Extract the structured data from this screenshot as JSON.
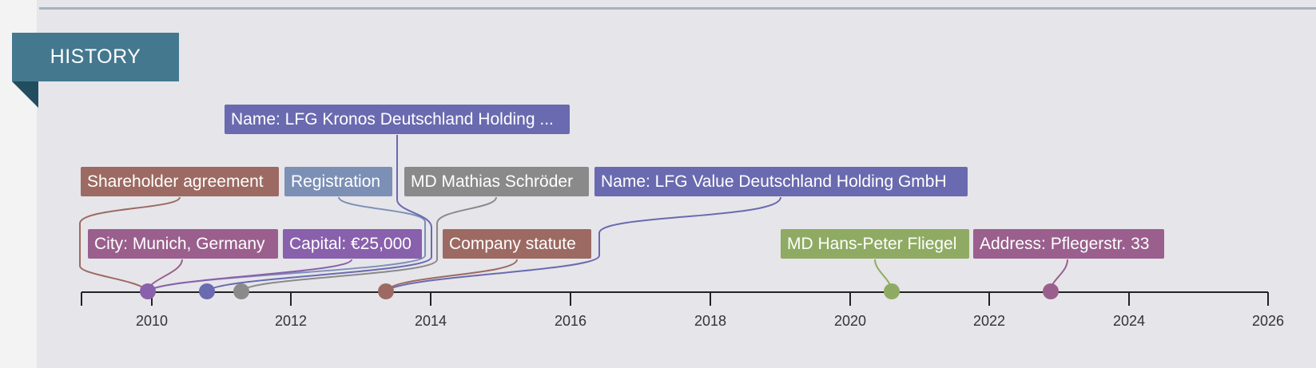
{
  "section": {
    "title": "HISTORY"
  },
  "colors": {
    "accent": "#44788f",
    "brown": "#9c6a62",
    "purple": "#6a6ab0",
    "blue_gray": "#7c8fb5",
    "gray": "#8a8a8a",
    "violet": "#8860ac",
    "magenta": "#9a5f8d",
    "green": "#8fab63"
  },
  "axis": {
    "years": [
      "2010",
      "2012",
      "2014",
      "2016",
      "2018",
      "2020",
      "2022",
      "2024",
      "2026"
    ]
  },
  "events": [
    {
      "label": "Shareholder agreement",
      "color": "#9c6a62"
    },
    {
      "label": "Registration",
      "color": "#7c8fb5"
    },
    {
      "label": "MD Mathias Schröder",
      "color": "#8a8a8a"
    },
    {
      "label": "Name: LFG Value Deutschland Holding GmbH",
      "color": "#6a6ab0"
    },
    {
      "label": "Name: LFG Kronos Deutschland Holding ...",
      "color": "#6a6ab0"
    },
    {
      "label": "City: Munich, Germany",
      "color": "#9a5f8d"
    },
    {
      "label": "Capital: €25,000",
      "color": "#8860ac"
    },
    {
      "label": "Company statute",
      "color": "#9c6a62"
    },
    {
      "label": "MD Hans-Peter Fliegel",
      "color": "#8fab63"
    },
    {
      "label": "Address: Pflegerstr. 33",
      "color": "#9a5f8d"
    }
  ],
  "markers": [
    {
      "color": "#8860ac"
    },
    {
      "color": "#6a6ab0"
    },
    {
      "color": "#8a8a8a"
    },
    {
      "color": "#9c6a62"
    },
    {
      "color": "#8fab63"
    },
    {
      "color": "#9a5f8d"
    }
  ]
}
